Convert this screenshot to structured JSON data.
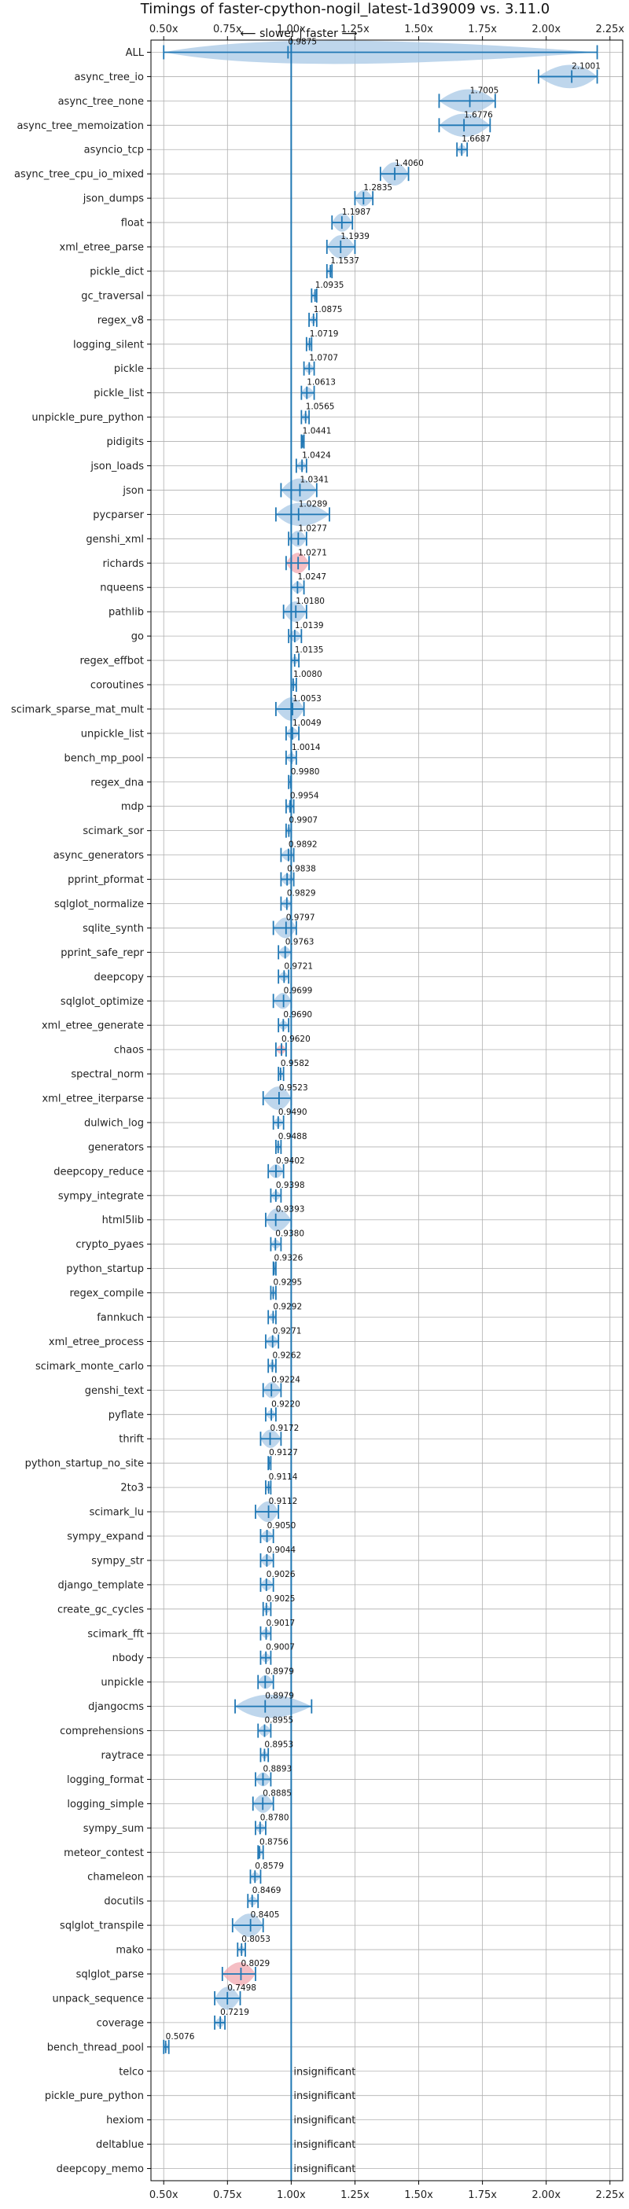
{
  "chart_data": {
    "type": "violin",
    "title": "Timings of faster-cpython-nogil_latest-1d39009 vs. 3.11.0",
    "direction_label": "⟵ slower | faster ⟶",
    "xlim": [
      0.45,
      2.3
    ],
    "xticks": [
      "0.50x",
      "0.75x",
      "1.00x",
      "1.25x",
      "1.50x",
      "1.75x",
      "2.00x",
      "2.25x"
    ],
    "xtick_values": [
      0.5,
      0.75,
      1.0,
      1.25,
      1.5,
      1.75,
      2.0,
      2.25
    ],
    "grid": true,
    "reference_line": 1.0,
    "insignificant_label": "insignificant",
    "colors": {
      "violin": "#a8c8e6",
      "violin_slow": "#f2a8b0",
      "line": "#1f77b4"
    },
    "series": [
      {
        "name": "ALL",
        "value": 0.9875,
        "label": "0.9875",
        "lo": 0.5,
        "hi": 2.2
      },
      {
        "name": "async_tree_io",
        "value": 2.1001,
        "label": "2.1001",
        "lo": 1.97,
        "hi": 2.2
      },
      {
        "name": "async_tree_none",
        "value": 1.7005,
        "label": "1.7005",
        "lo": 1.58,
        "hi": 1.8
      },
      {
        "name": "async_tree_memoization",
        "value": 1.6776,
        "label": "1.6776",
        "lo": 1.58,
        "hi": 1.78
      },
      {
        "name": "asyncio_tcp",
        "value": 1.6687,
        "label": "1.6687",
        "lo": 1.65,
        "hi": 1.69
      },
      {
        "name": "async_tree_cpu_io_mixed",
        "value": 1.406,
        "label": "1.4060",
        "lo": 1.35,
        "hi": 1.46
      },
      {
        "name": "json_dumps",
        "value": 1.2835,
        "label": "1.2835",
        "lo": 1.25,
        "hi": 1.32
      },
      {
        "name": "float",
        "value": 1.1987,
        "label": "1.1987",
        "lo": 1.16,
        "hi": 1.24
      },
      {
        "name": "xml_etree_parse",
        "value": 1.1939,
        "label": "1.1939",
        "lo": 1.14,
        "hi": 1.25
      },
      {
        "name": "pickle_dict",
        "value": 1.1537,
        "label": "1.1537",
        "lo": 1.14,
        "hi": 1.16
      },
      {
        "name": "gc_traversal",
        "value": 1.0935,
        "label": "1.0935",
        "lo": 1.08,
        "hi": 1.1
      },
      {
        "name": "regex_v8",
        "value": 1.0875,
        "label": "1.0875",
        "lo": 1.07,
        "hi": 1.1
      },
      {
        "name": "logging_silent",
        "value": 1.0719,
        "label": "1.0719",
        "lo": 1.06,
        "hi": 1.08
      },
      {
        "name": "pickle",
        "value": 1.0707,
        "label": "1.0707",
        "lo": 1.05,
        "hi": 1.09
      },
      {
        "name": "pickle_list",
        "value": 1.0613,
        "label": "1.0613",
        "lo": 1.04,
        "hi": 1.09
      },
      {
        "name": "unpickle_pure_python",
        "value": 1.0565,
        "label": "1.0565",
        "lo": 1.04,
        "hi": 1.07
      },
      {
        "name": "pidigits",
        "value": 1.0441,
        "label": "1.0441",
        "lo": 1.04,
        "hi": 1.05
      },
      {
        "name": "json_loads",
        "value": 1.0424,
        "label": "1.0424",
        "lo": 1.02,
        "hi": 1.06
      },
      {
        "name": "json",
        "value": 1.0341,
        "label": "1.0341",
        "lo": 0.96,
        "hi": 1.1
      },
      {
        "name": "pycparser",
        "value": 1.0289,
        "label": "1.0289",
        "lo": 0.94,
        "hi": 1.15
      },
      {
        "name": "genshi_xml",
        "value": 1.0277,
        "label": "1.0277",
        "lo": 0.99,
        "hi": 1.06
      },
      {
        "name": "richards",
        "value": 1.0271,
        "label": "1.0271",
        "lo": 0.98,
        "hi": 1.07
      },
      {
        "name": "nqueens",
        "value": 1.0247,
        "label": "1.0247",
        "lo": 1.0,
        "hi": 1.05
      },
      {
        "name": "pathlib",
        "value": 1.018,
        "label": "1.0180",
        "lo": 0.97,
        "hi": 1.06
      },
      {
        "name": "go",
        "value": 1.0139,
        "label": "1.0139",
        "lo": 0.99,
        "hi": 1.04
      },
      {
        "name": "regex_effbot",
        "value": 1.0135,
        "label": "1.0135",
        "lo": 1.0,
        "hi": 1.03
      },
      {
        "name": "coroutines",
        "value": 1.008,
        "label": "1.0080",
        "lo": 1.0,
        "hi": 1.02
      },
      {
        "name": "scimark_sparse_mat_mult",
        "value": 1.0053,
        "label": "1.0053",
        "lo": 0.94,
        "hi": 1.05
      },
      {
        "name": "unpickle_list",
        "value": 1.0049,
        "label": "1.0049",
        "lo": 0.98,
        "hi": 1.03
      },
      {
        "name": "bench_mp_pool",
        "value": 1.0014,
        "label": "1.0014",
        "lo": 0.98,
        "hi": 1.02
      },
      {
        "name": "regex_dna",
        "value": 0.998,
        "label": "0.9980",
        "lo": 0.99,
        "hi": 1.0
      },
      {
        "name": "mdp",
        "value": 0.9954,
        "label": "0.9954",
        "lo": 0.98,
        "hi": 1.01
      },
      {
        "name": "scimark_sor",
        "value": 0.9907,
        "label": "0.9907",
        "lo": 0.98,
        "hi": 1.0
      },
      {
        "name": "async_generators",
        "value": 0.9892,
        "label": "0.9892",
        "lo": 0.96,
        "hi": 1.01
      },
      {
        "name": "pprint_pformat",
        "value": 0.9838,
        "label": "0.9838",
        "lo": 0.96,
        "hi": 1.01
      },
      {
        "name": "sqlglot_normalize",
        "value": 0.9829,
        "label": "0.9829",
        "lo": 0.96,
        "hi": 1.0
      },
      {
        "name": "sqlite_synth",
        "value": 0.9797,
        "label": "0.9797",
        "lo": 0.93,
        "hi": 1.02
      },
      {
        "name": "pprint_safe_repr",
        "value": 0.9763,
        "label": "0.9763",
        "lo": 0.95,
        "hi": 1.0
      },
      {
        "name": "deepcopy",
        "value": 0.9721,
        "label": "0.9721",
        "lo": 0.95,
        "hi": 0.99
      },
      {
        "name": "sqlglot_optimize",
        "value": 0.9699,
        "label": "0.9699",
        "lo": 0.93,
        "hi": 1.0
      },
      {
        "name": "xml_etree_generate",
        "value": 0.969,
        "label": "0.9690",
        "lo": 0.95,
        "hi": 0.99
      },
      {
        "name": "chaos",
        "value": 0.962,
        "label": "0.9620",
        "lo": 0.94,
        "hi": 0.98
      },
      {
        "name": "spectral_norm",
        "value": 0.9582,
        "label": "0.9582",
        "lo": 0.95,
        "hi": 0.97
      },
      {
        "name": "xml_etree_iterparse",
        "value": 0.9523,
        "label": "0.9523",
        "lo": 0.89,
        "hi": 1.0
      },
      {
        "name": "dulwich_log",
        "value": 0.949,
        "label": "0.9490",
        "lo": 0.93,
        "hi": 0.97
      },
      {
        "name": "generators",
        "value": 0.9488,
        "label": "0.9488",
        "lo": 0.94,
        "hi": 0.96
      },
      {
        "name": "deepcopy_reduce",
        "value": 0.9402,
        "label": "0.9402",
        "lo": 0.91,
        "hi": 0.97
      },
      {
        "name": "sympy_integrate",
        "value": 0.9398,
        "label": "0.9398",
        "lo": 0.92,
        "hi": 0.96
      },
      {
        "name": "html5lib",
        "value": 0.9393,
        "label": "0.9393",
        "lo": 0.9,
        "hi": 1.0
      },
      {
        "name": "crypto_pyaes",
        "value": 0.938,
        "label": "0.9380",
        "lo": 0.92,
        "hi": 0.96
      },
      {
        "name": "python_startup",
        "value": 0.9326,
        "label": "0.9326",
        "lo": 0.93,
        "hi": 0.94
      },
      {
        "name": "regex_compile",
        "value": 0.9295,
        "label": "0.9295",
        "lo": 0.92,
        "hi": 0.94
      },
      {
        "name": "fannkuch",
        "value": 0.9292,
        "label": "0.9292",
        "lo": 0.91,
        "hi": 0.94
      },
      {
        "name": "xml_etree_process",
        "value": 0.9271,
        "label": "0.9271",
        "lo": 0.9,
        "hi": 0.95
      },
      {
        "name": "scimark_monte_carlo",
        "value": 0.9262,
        "label": "0.9262",
        "lo": 0.91,
        "hi": 0.94
      },
      {
        "name": "genshi_text",
        "value": 0.9224,
        "label": "0.9224",
        "lo": 0.89,
        "hi": 0.96
      },
      {
        "name": "pyflate",
        "value": 0.922,
        "label": "0.9220",
        "lo": 0.9,
        "hi": 0.94
      },
      {
        "name": "thrift",
        "value": 0.9172,
        "label": "0.9172",
        "lo": 0.88,
        "hi": 0.96
      },
      {
        "name": "python_startup_no_site",
        "value": 0.9127,
        "label": "0.9127",
        "lo": 0.91,
        "hi": 0.92
      },
      {
        "name": "2to3",
        "value": 0.9114,
        "label": "0.9114",
        "lo": 0.9,
        "hi": 0.92
      },
      {
        "name": "scimark_lu",
        "value": 0.9112,
        "label": "0.9112",
        "lo": 0.86,
        "hi": 0.95
      },
      {
        "name": "sympy_expand",
        "value": 0.905,
        "label": "0.9050",
        "lo": 0.88,
        "hi": 0.93
      },
      {
        "name": "sympy_str",
        "value": 0.9044,
        "label": "0.9044",
        "lo": 0.88,
        "hi": 0.93
      },
      {
        "name": "django_template",
        "value": 0.9026,
        "label": "0.9026",
        "lo": 0.88,
        "hi": 0.93
      },
      {
        "name": "create_gc_cycles",
        "value": 0.9025,
        "label": "0.9025",
        "lo": 0.89,
        "hi": 0.92
      },
      {
        "name": "scimark_fft",
        "value": 0.9017,
        "label": "0.9017",
        "lo": 0.88,
        "hi": 0.92
      },
      {
        "name": "nbody",
        "value": 0.9007,
        "label": "0.9007",
        "lo": 0.88,
        "hi": 0.92
      },
      {
        "name": "unpickle",
        "value": 0.8979,
        "label": "0.8979",
        "lo": 0.87,
        "hi": 0.93
      },
      {
        "name": "djangocms",
        "value": 0.8979,
        "label": "0.8979",
        "lo": 0.78,
        "hi": 1.08
      },
      {
        "name": "comprehensions",
        "value": 0.8955,
        "label": "0.8955",
        "lo": 0.87,
        "hi": 0.92
      },
      {
        "name": "raytrace",
        "value": 0.8953,
        "label": "0.8953",
        "lo": 0.88,
        "hi": 0.91
      },
      {
        "name": "logging_format",
        "value": 0.8893,
        "label": "0.8893",
        "lo": 0.86,
        "hi": 0.92
      },
      {
        "name": "logging_simple",
        "value": 0.8885,
        "label": "0.8885",
        "lo": 0.85,
        "hi": 0.93
      },
      {
        "name": "sympy_sum",
        "value": 0.878,
        "label": "0.8780",
        "lo": 0.86,
        "hi": 0.9
      },
      {
        "name": "meteor_contest",
        "value": 0.8756,
        "label": "0.8756",
        "lo": 0.87,
        "hi": 0.89
      },
      {
        "name": "chameleon",
        "value": 0.8579,
        "label": "0.8579",
        "lo": 0.84,
        "hi": 0.88
      },
      {
        "name": "docutils",
        "value": 0.8469,
        "label": "0.8469",
        "lo": 0.83,
        "hi": 0.87
      },
      {
        "name": "sqlglot_transpile",
        "value": 0.8405,
        "label": "0.8405",
        "lo": 0.77,
        "hi": 0.89
      },
      {
        "name": "mako",
        "value": 0.8053,
        "label": "0.8053",
        "lo": 0.79,
        "hi": 0.82
      },
      {
        "name": "sqlglot_parse",
        "value": 0.8029,
        "label": "0.8029",
        "lo": 0.73,
        "hi": 0.86
      },
      {
        "name": "unpack_sequence",
        "value": 0.7498,
        "label": "0.7498",
        "lo": 0.7,
        "hi": 0.8
      },
      {
        "name": "coverage",
        "value": 0.7219,
        "label": "0.7219",
        "lo": 0.7,
        "hi": 0.74
      },
      {
        "name": "bench_thread_pool",
        "value": 0.5076,
        "label": "0.5076",
        "lo": 0.5,
        "hi": 0.52
      },
      {
        "name": "telco",
        "value": null,
        "label": "insignificant"
      },
      {
        "name": "pickle_pure_python",
        "value": null,
        "label": "insignificant"
      },
      {
        "name": "hexiom",
        "value": null,
        "label": "insignificant"
      },
      {
        "name": "deltablue",
        "value": null,
        "label": "insignificant"
      },
      {
        "name": "deepcopy_memo",
        "value": null,
        "label": "insignificant"
      }
    ]
  }
}
